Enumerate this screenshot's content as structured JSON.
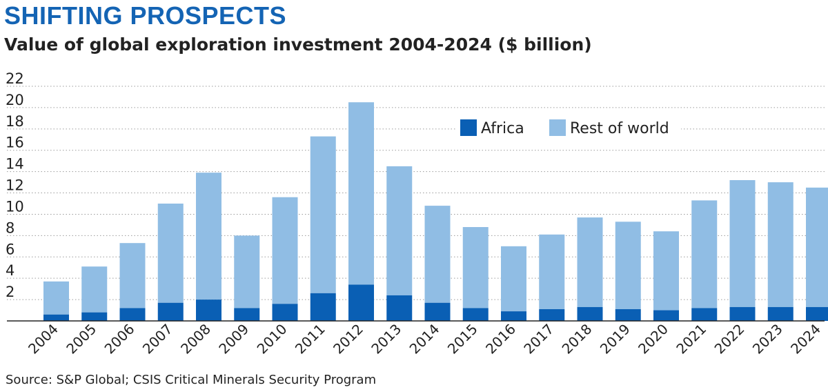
{
  "title": "SHIFTING PROSPECTS",
  "subtitle": "Value of global exploration investment 2004-2024 ($ billion)",
  "source": "Source: S&P Global; CSIS Critical Minerals Security Program",
  "colors": {
    "africa": "#0a5fb4",
    "rest": "#90bde4",
    "title": "#1464b4"
  },
  "chart_data": {
    "type": "bar",
    "stacked": true,
    "categories": [
      "2004",
      "2005",
      "2006",
      "2007",
      "2008",
      "2009",
      "2010",
      "2011",
      "2012",
      "2013",
      "2014",
      "2015",
      "2016",
      "2017",
      "2018",
      "2019",
      "2020",
      "2021",
      "2022",
      "2023",
      "2024"
    ],
    "series": [
      {
        "name": "Africa",
        "values": [
          0.6,
          0.8,
          1.2,
          1.7,
          2.0,
          1.2,
          1.6,
          2.6,
          3.4,
          2.4,
          1.7,
          1.2,
          0.9,
          1.1,
          1.3,
          1.1,
          1.0,
          1.2,
          1.3,
          1.3,
          1.3
        ]
      },
      {
        "name": "Rest of world",
        "values": [
          3.1,
          4.3,
          6.1,
          9.3,
          11.9,
          6.8,
          10.0,
          14.7,
          17.1,
          12.1,
          9.1,
          7.6,
          6.1,
          7.0,
          8.4,
          8.2,
          7.4,
          10.1,
          11.9,
          11.7,
          11.2
        ]
      }
    ],
    "yticks": [
      "2",
      "4",
      "6",
      "8",
      "10",
      "12",
      "14",
      "16",
      "18",
      "20",
      "22"
    ],
    "ylim": [
      0,
      22
    ],
    "legend": [
      "Africa",
      "Rest of world"
    ],
    "legend_position": "top-right",
    "grid": "dotted horizontal",
    "xlabel": "",
    "ylabel": ""
  }
}
